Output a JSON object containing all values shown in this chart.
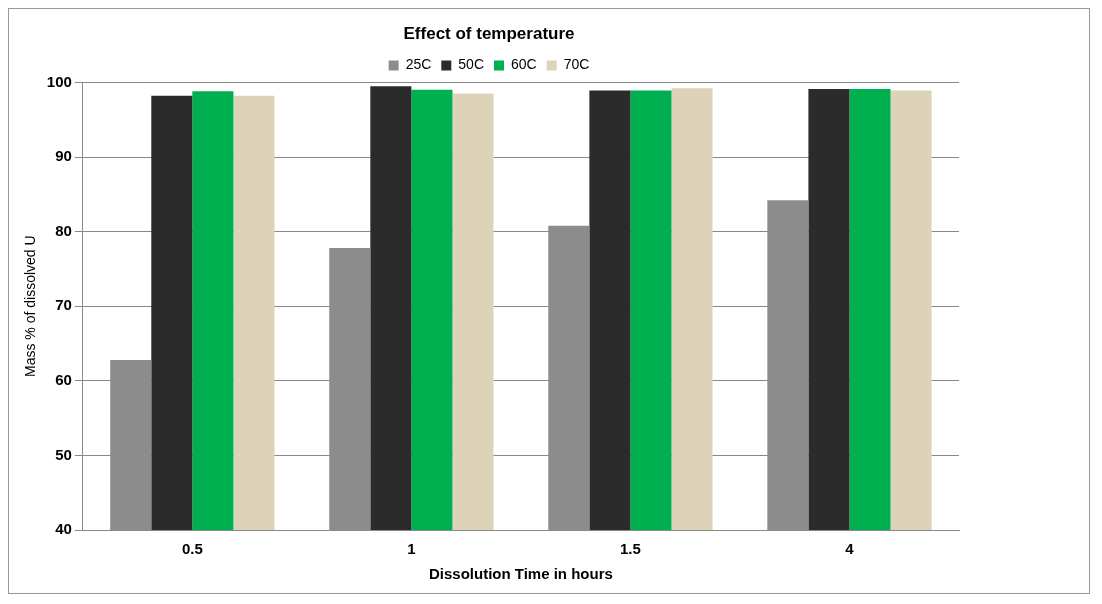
{
  "chart_data": {
    "type": "bar",
    "title": "Effect of temperature",
    "xlabel": "Dissolution Time in hours",
    "ylabel": "Mass % of dissolved U",
    "categories": [
      "0.5",
      "1",
      "1.5",
      "4"
    ],
    "series": [
      {
        "name": "25C",
        "color": "#8c8c8c",
        "values": [
          62.8,
          77.8,
          80.8,
          84.2
        ]
      },
      {
        "name": "50C",
        "color": "#2b2b2b",
        "values": [
          98.2,
          99.5,
          98.9,
          99.1
        ]
      },
      {
        "name": "60C",
        "color": "#00b050",
        "values": [
          98.8,
          99.0,
          98.9,
          99.1
        ]
      },
      {
        "name": "70C",
        "color": "#ddd3b8",
        "values": [
          98.2,
          98.5,
          99.2,
          98.9
        ]
      }
    ],
    "ylim": [
      40,
      100
    ],
    "yticks": [
      40,
      50,
      60,
      70,
      80,
      90,
      100
    ],
    "grid": "y",
    "legend": "top"
  }
}
